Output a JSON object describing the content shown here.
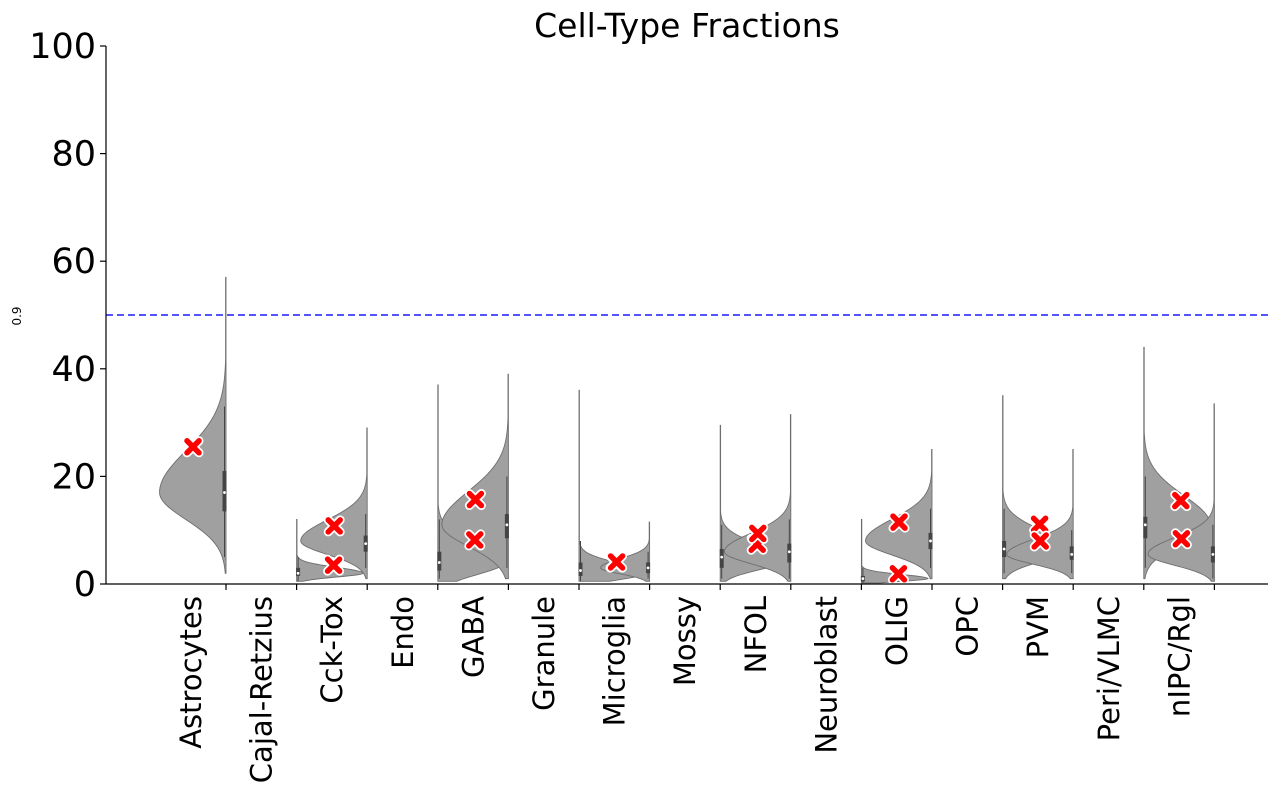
{
  "chart_data": {
    "type": "violin",
    "title": "Cell-Type Fractions",
    "xlabel": "",
    "ylabel": "0.9",
    "ylim": [
      0,
      100
    ],
    "yticks": [
      0,
      20,
      40,
      60,
      80,
      100
    ],
    "reference_line": {
      "y": 50,
      "color": "#3b3bff",
      "style": "dashed"
    },
    "violin_color": "#a0a0a0",
    "marker_color": "#ff0000",
    "categories": [
      "Astrocytes",
      "Cajal-Retzius",
      "Cck-Tox",
      "Endo",
      "GABA",
      "Granule",
      "Microglia",
      "Mossy",
      "NFOL",
      "Neuroblast",
      "OLIG",
      "OPC",
      "PVM",
      "Peri/VLMC",
      "nIPC/Rgl"
    ],
    "violins": [
      {
        "category": "Astrocytes",
        "side": "left",
        "min": 2.0,
        "max": 57.0,
        "mode": 17.0,
        "width": 0.95,
        "spread": 5.0,
        "q1": 13.5,
        "median": 17.0,
        "q3": 21.0,
        "whisker_low": 5.0,
        "whisker_high": 33.0
      },
      {
        "category": "Cajal-Retzius",
        "side": "right",
        "min": 0.5,
        "max": 12.0,
        "mode": 2.0,
        "width": 0.95,
        "spread": 0.7,
        "q1": 1.5,
        "median": 2.0,
        "q3": 3.0,
        "whisker_low": 0.5,
        "whisker_high": 5.0
      },
      {
        "category": "Cck-Tox",
        "side": "left",
        "min": 1.0,
        "max": 29.0,
        "mode": 8.0,
        "width": 0.95,
        "spread": 2.5,
        "q1": 6.0,
        "median": 7.5,
        "q3": 9.0,
        "whisker_low": 3.0,
        "whisker_high": 13.0
      },
      {
        "category": "Endo",
        "side": "right",
        "min": 0.5,
        "max": 37.0,
        "mode": 4.0,
        "width": 0.95,
        "spread": 2.2,
        "q1": 2.5,
        "median": 4.0,
        "q3": 6.0,
        "whisker_low": 1.0,
        "whisker_high": 12.0
      },
      {
        "category": "GABA",
        "side": "left",
        "min": 1.0,
        "max": 39.0,
        "mode": 11.0,
        "width": 0.95,
        "spread": 4.0,
        "q1": 8.5,
        "median": 11.0,
        "q3": 13.0,
        "whisker_low": 3.0,
        "whisker_high": 20.0
      },
      {
        "category": "Granule",
        "side": "right",
        "min": 0.5,
        "max": 36.0,
        "mode": 2.0,
        "width": 0.95,
        "spread": 1.2,
        "q1": 1.5,
        "median": 2.5,
        "q3": 4.0,
        "whisker_low": 0.5,
        "whisker_high": 8.0
      },
      {
        "category": "Microglia",
        "side": "left",
        "min": 0.5,
        "max": 11.5,
        "mode": 3.0,
        "width": 0.7,
        "spread": 1.1,
        "q1": 2.0,
        "median": 3.0,
        "q3": 4.0,
        "whisker_low": 1.0,
        "whisker_high": 6.0
      },
      {
        "category": "Mossy",
        "side": "right",
        "min": 0.5,
        "max": 29.5,
        "mode": 4.5,
        "width": 0.95,
        "spread": 1.8,
        "q1": 3.0,
        "median": 5.0,
        "q3": 6.5,
        "whisker_low": 1.0,
        "whisker_high": 11.0
      },
      {
        "category": "NFOL",
        "side": "left",
        "min": 0.5,
        "max": 31.5,
        "mode": 6.0,
        "width": 0.95,
        "spread": 2.2,
        "q1": 4.0,
        "median": 6.0,
        "q3": 7.5,
        "whisker_low": 1.0,
        "whisker_high": 12.0
      },
      {
        "category": "Neuroblast",
        "side": "right",
        "min": 0.2,
        "max": 12.0,
        "mode": 1.0,
        "width": 0.95,
        "spread": 0.5,
        "q1": 0.5,
        "median": 1.0,
        "q3": 1.5,
        "whisker_low": 0.2,
        "whisker_high": 3.0
      },
      {
        "category": "OLIG",
        "side": "left",
        "min": 1.0,
        "max": 25.0,
        "mode": 8.0,
        "width": 0.95,
        "spread": 2.6,
        "q1": 6.5,
        "median": 8.0,
        "q3": 9.5,
        "whisker_low": 3.0,
        "whisker_high": 14.0
      },
      {
        "category": "OPC",
        "side": "right",
        "min": 1.0,
        "max": 35.0,
        "mode": 6.5,
        "width": 0.95,
        "spread": 2.2,
        "q1": 5.0,
        "median": 6.5,
        "q3": 8.0,
        "whisker_low": 2.0,
        "whisker_high": 14.0
      },
      {
        "category": "PVM",
        "side": "left",
        "min": 1.0,
        "max": 25.0,
        "mode": 5.5,
        "width": 0.95,
        "spread": 1.8,
        "q1": 4.5,
        "median": 5.5,
        "q3": 7.0,
        "whisker_low": 2.0,
        "whisker_high": 10.0
      },
      {
        "category": "Peri/VLMC",
        "side": "right",
        "min": 1.0,
        "max": 44.0,
        "mode": 11.0,
        "width": 0.95,
        "spread": 3.5,
        "q1": 8.5,
        "median": 11.0,
        "q3": 12.5,
        "whisker_low": 3.0,
        "whisker_high": 20.0
      },
      {
        "category": "nIPC/Rgl",
        "side": "left",
        "min": 0.5,
        "max": 33.5,
        "mode": 5.5,
        "width": 0.95,
        "spread": 2.0,
        "q1": 4.0,
        "median": 5.5,
        "q3": 7.0,
        "whisker_low": 1.0,
        "whisker_high": 11.0
      }
    ],
    "markers": [
      {
        "category": "Astrocytes",
        "value": 25.5
      },
      {
        "category": "Cajal-Retzius",
        "value": 3.5
      },
      {
        "category": "Cck-Tox",
        "value": 10.8
      },
      {
        "category": "Endo",
        "value": 8.2
      },
      {
        "category": "GABA",
        "value": 15.7
      },
      {
        "category": "Granule",
        "value": 4.1
      },
      {
        "category": "Microglia",
        "value": 4.1
      },
      {
        "category": "Mossy",
        "value": 7.4
      },
      {
        "category": "NFOL",
        "value": 9.4
      },
      {
        "category": "Neuroblast",
        "value": 1.9
      },
      {
        "category": "OLIG",
        "value": 11.5
      },
      {
        "category": "OPC",
        "value": 11.1
      },
      {
        "category": "PVM",
        "value": 8.0
      },
      {
        "category": "Peri/VLMC",
        "value": 15.5
      },
      {
        "category": "nIPC/Rgl",
        "value": 8.4
      }
    ]
  }
}
